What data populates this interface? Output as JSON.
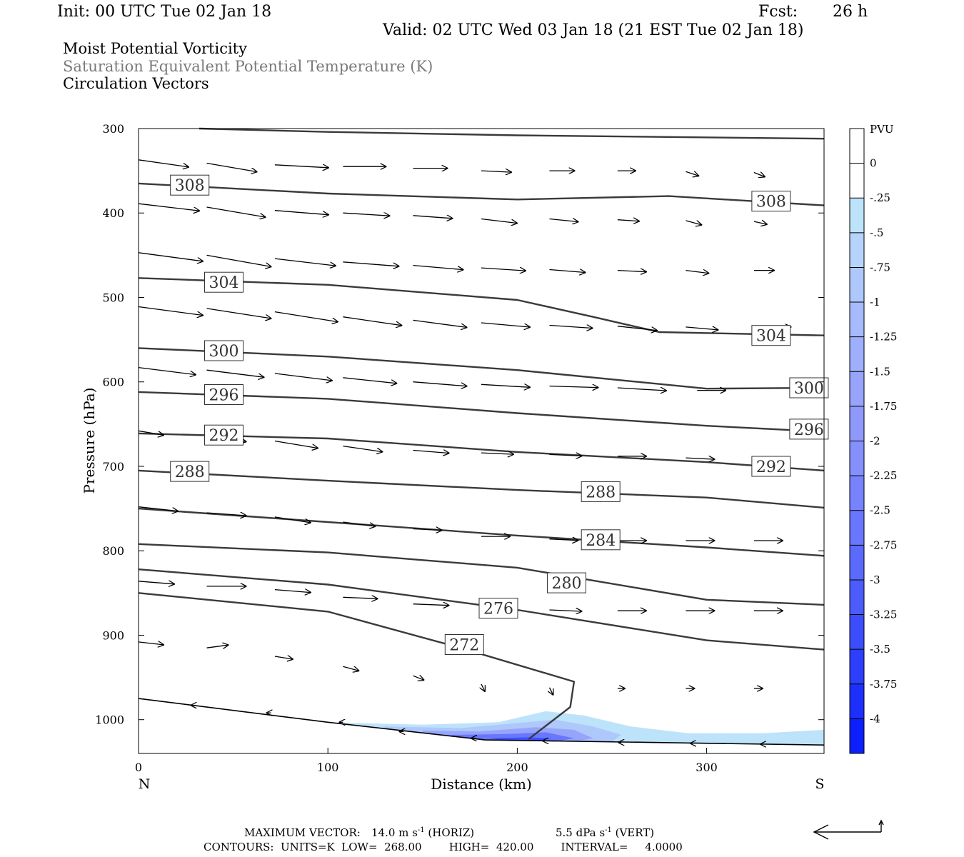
{
  "header": {
    "init": "Init: 00 UTC Tue 02 Jan 18",
    "fcst_label": "Fcst:",
    "fcst_value": "26 h",
    "valid": "Valid: 02 UTC Wed 03 Jan 18 (21 EST Tue 02 Jan 18)",
    "titles": [
      "Moist Potential Vorticity",
      "Saturation Equivalent Potential Temperature (K)",
      "Circulation Vectors"
    ]
  },
  "chart_data": {
    "type": "cross-section",
    "xlabel": "Distance (km)",
    "ylabel": "Pressure (hPa)",
    "xlim": [
      0,
      362
    ],
    "ylim": [
      1040,
      300
    ],
    "x_ticks": [
      0,
      100,
      200,
      300
    ],
    "y_ticks": [
      300,
      400,
      500,
      600,
      700,
      800,
      900,
      1000
    ],
    "endpoint_labels": {
      "left": "N",
      "right": "S"
    },
    "colorbar": {
      "title": "PVU",
      "levels": [
        "0",
        "-.25",
        "-.5",
        "-.75",
        "-1",
        "-1.25",
        "-1.5",
        "-1.75",
        "-2",
        "-2.25",
        "-2.5",
        "-2.75",
        "-3",
        "-3.25",
        "-3.5",
        "-3.75",
        "-4"
      ],
      "colors": [
        "#ffffff",
        "#ffffff",
        "#bde3fb",
        "#b6d4fb",
        "#aec8fb",
        "#a6bbfb",
        "#9eb0fb",
        "#96a4fb",
        "#8e99fb",
        "#8490fb",
        "#7683fb",
        "#6877fb",
        "#5a6afb",
        "#4b5cfb",
        "#3c4efb",
        "#2d3ffb",
        "#1d30fb",
        "#0d20fb"
      ]
    },
    "contours": [
      {
        "label": "",
        "points": [
          [
            32,
            300
          ],
          [
            100,
            304
          ],
          [
            200,
            308
          ],
          [
            362,
            312
          ]
        ],
        "labels": []
      },
      {
        "label": "308",
        "points": [
          [
            0,
            365
          ],
          [
            100,
            377
          ],
          [
            200,
            384
          ],
          [
            280,
            380
          ],
          [
            362,
            391
          ]
        ],
        "labels": [
          [
            18,
            367
          ],
          [
            325,
            386
          ]
        ]
      },
      {
        "label": "304",
        "points": [
          [
            0,
            477
          ],
          [
            100,
            485
          ],
          [
            200,
            503
          ],
          [
            240,
            523
          ],
          [
            275,
            541
          ],
          [
            362,
            545
          ]
        ],
        "labels": [
          [
            36,
            482
          ],
          [
            325,
            545
          ]
        ]
      },
      {
        "label": "300",
        "points": [
          [
            0,
            560
          ],
          [
            100,
            570
          ],
          [
            200,
            586
          ],
          [
            300,
            608
          ],
          [
            362,
            607
          ]
        ],
        "labels": [
          [
            36,
            563
          ],
          [
            345,
            607
          ]
        ]
      },
      {
        "label": "296",
        "points": [
          [
            0,
            612
          ],
          [
            100,
            620
          ],
          [
            200,
            637
          ],
          [
            300,
            652
          ],
          [
            362,
            659
          ]
        ],
        "labels": [
          [
            36,
            615
          ],
          [
            345,
            656
          ]
        ]
      },
      {
        "label": "292",
        "points": [
          [
            0,
            661
          ],
          [
            100,
            667
          ],
          [
            200,
            683
          ],
          [
            300,
            695
          ],
          [
            362,
            705
          ]
        ],
        "labels": [
          [
            36,
            663
          ],
          [
            325,
            700
          ]
        ]
      },
      {
        "label": "288",
        "points": [
          [
            0,
            705
          ],
          [
            100,
            717
          ],
          [
            200,
            728
          ],
          [
            300,
            737
          ],
          [
            362,
            749
          ]
        ],
        "labels": [
          [
            18,
            706
          ],
          [
            235,
            730
          ]
        ]
      },
      {
        "label": "284",
        "points": [
          [
            0,
            750
          ],
          [
            100,
            766
          ],
          [
            200,
            782
          ],
          [
            300,
            796
          ],
          [
            362,
            806
          ]
        ],
        "labels": [
          [
            235,
            787
          ]
        ]
      },
      {
        "label": "280",
        "points": [
          [
            0,
            792
          ],
          [
            100,
            802
          ],
          [
            200,
            820
          ],
          [
            300,
            858
          ],
          [
            362,
            864
          ]
        ],
        "labels": [
          [
            217,
            838
          ]
        ]
      },
      {
        "label": "276",
        "points": [
          [
            0,
            822
          ],
          [
            100,
            840
          ],
          [
            200,
            870
          ],
          [
            300,
            906
          ],
          [
            362,
            917
          ]
        ],
        "labels": [
          [
            181,
            868
          ]
        ]
      },
      {
        "label": "272",
        "points": [
          [
            0,
            850
          ],
          [
            100,
            872
          ],
          [
            170,
            915
          ],
          [
            230,
            955
          ],
          [
            228,
            985
          ],
          [
            206,
            1023
          ]
        ],
        "labels": [
          [
            163,
            911
          ]
        ]
      }
    ],
    "vectors": [
      {
        "x": 0,
        "p": 337,
        "u": 70,
        "w": 10
      },
      {
        "x": 36,
        "p": 341,
        "u": 70,
        "w": 12
      },
      {
        "x": 72,
        "p": 343,
        "u": 75,
        "w": 4
      },
      {
        "x": 108,
        "p": 345,
        "u": 60,
        "w": 0
      },
      {
        "x": 145,
        "p": 347,
        "u": 48,
        "w": 0
      },
      {
        "x": 181,
        "p": 350,
        "u": 42,
        "w": 2
      },
      {
        "x": 217,
        "p": 350,
        "u": 35,
        "w": 0
      },
      {
        "x": 253,
        "p": 350,
        "u": 25,
        "w": 0
      },
      {
        "x": 289,
        "p": 351,
        "u": 18,
        "w": 6
      },
      {
        "x": 325,
        "p": 352,
        "u": 15,
        "w": 6
      },
      {
        "x": 0,
        "p": 389,
        "u": 85,
        "w": 10
      },
      {
        "x": 36,
        "p": 393,
        "u": 82,
        "w": 14
      },
      {
        "x": 72,
        "p": 397,
        "u": 75,
        "w": 6
      },
      {
        "x": 108,
        "p": 400,
        "u": 65,
        "w": 4
      },
      {
        "x": 145,
        "p": 403,
        "u": 55,
        "w": 4
      },
      {
        "x": 181,
        "p": 407,
        "u": 50,
        "w": 6
      },
      {
        "x": 217,
        "p": 407,
        "u": 40,
        "w": 4
      },
      {
        "x": 253,
        "p": 408,
        "u": 30,
        "w": 2
      },
      {
        "x": 289,
        "p": 409,
        "u": 22,
        "w": 6
      },
      {
        "x": 325,
        "p": 410,
        "u": 18,
        "w": 4
      },
      {
        "x": 0,
        "p": 447,
        "u": 90,
        "w": 12
      },
      {
        "x": 36,
        "p": 450,
        "u": 90,
        "w": 16
      },
      {
        "x": 72,
        "p": 454,
        "u": 85,
        "w": 10
      },
      {
        "x": 108,
        "p": 458,
        "u": 78,
        "w": 6
      },
      {
        "x": 145,
        "p": 462,
        "u": 70,
        "w": 6
      },
      {
        "x": 181,
        "p": 465,
        "u": 62,
        "w": 4
      },
      {
        "x": 217,
        "p": 467,
        "u": 50,
        "w": 4
      },
      {
        "x": 253,
        "p": 468,
        "u": 40,
        "w": 2
      },
      {
        "x": 289,
        "p": 468,
        "u": 32,
        "w": 4
      },
      {
        "x": 325,
        "p": 468,
        "u": 28,
        "w": 0
      },
      {
        "x": 0,
        "p": 511,
        "u": 90,
        "w": 12
      },
      {
        "x": 36,
        "p": 513,
        "u": 90,
        "w": 14
      },
      {
        "x": 72,
        "p": 517,
        "u": 88,
        "w": 14
      },
      {
        "x": 108,
        "p": 523,
        "u": 82,
        "w": 12
      },
      {
        "x": 145,
        "p": 527,
        "u": 75,
        "w": 10
      },
      {
        "x": 181,
        "p": 530,
        "u": 68,
        "w": 6
      },
      {
        "x": 217,
        "p": 533,
        "u": 60,
        "w": 4
      },
      {
        "x": 253,
        "p": 534,
        "u": 55,
        "w": 6
      },
      {
        "x": 289,
        "p": 535,
        "u": 45,
        "w": 4
      },
      {
        "x": 335,
        "p": 535,
        "u": 25,
        "w": 0
      },
      {
        "x": 0,
        "p": 583,
        "u": 80,
        "w": 10
      },
      {
        "x": 36,
        "p": 586,
        "u": 80,
        "w": 10
      },
      {
        "x": 72,
        "p": 590,
        "u": 80,
        "w": 10
      },
      {
        "x": 108,
        "p": 595,
        "u": 75,
        "w": 8
      },
      {
        "x": 145,
        "p": 600,
        "u": 75,
        "w": 6
      },
      {
        "x": 181,
        "p": 603,
        "u": 68,
        "w": 4
      },
      {
        "x": 217,
        "p": 605,
        "u": 68,
        "w": 2
      },
      {
        "x": 253,
        "p": 607,
        "u": 68,
        "w": 4
      },
      {
        "x": 295,
        "p": 610,
        "u": 40,
        "w": 0
      },
      {
        "x": 0,
        "p": 658,
        "u": 35,
        "w": 6
      },
      {
        "x": 36,
        "p": 664,
        "u": 55,
        "w": 8
      },
      {
        "x": 72,
        "p": 670,
        "u": 60,
        "w": 10
      },
      {
        "x": 108,
        "p": 676,
        "u": 55,
        "w": 8
      },
      {
        "x": 145,
        "p": 681,
        "u": 50,
        "w": 4
      },
      {
        "x": 181,
        "p": 684,
        "u": 45,
        "w": 2
      },
      {
        "x": 217,
        "p": 686,
        "u": 45,
        "w": 2
      },
      {
        "x": 253,
        "p": 688,
        "u": 40,
        "w": 0
      },
      {
        "x": 289,
        "p": 690,
        "u": 40,
        "w": 2
      },
      {
        "x": 325,
        "p": 692,
        "u": 35,
        "w": 4
      },
      {
        "x": 0,
        "p": 748,
        "u": 55,
        "w": 6
      },
      {
        "x": 36,
        "p": 755,
        "u": 55,
        "w": 4
      },
      {
        "x": 72,
        "p": 760,
        "u": 50,
        "w": 8
      },
      {
        "x": 108,
        "p": 766,
        "u": 45,
        "w": 6
      },
      {
        "x": 145,
        "p": 774,
        "u": 40,
        "w": 2
      },
      {
        "x": 181,
        "p": 783,
        "u": 40,
        "w": 0
      },
      {
        "x": 217,
        "p": 786,
        "u": 40,
        "w": 2
      },
      {
        "x": 253,
        "p": 788,
        "u": 40,
        "w": 0
      },
      {
        "x": 289,
        "p": 788,
        "u": 40,
        "w": 0
      },
      {
        "x": 325,
        "p": 788,
        "u": 40,
        "w": 0
      },
      {
        "x": 0,
        "p": 836,
        "u": 50,
        "w": 4
      },
      {
        "x": 36,
        "p": 842,
        "u": 55,
        "w": 0
      },
      {
        "x": 72,
        "p": 846,
        "u": 50,
        "w": 4
      },
      {
        "x": 108,
        "p": 855,
        "u": 48,
        "w": 2
      },
      {
        "x": 145,
        "p": 863,
        "u": 50,
        "w": 2
      },
      {
        "x": 181,
        "p": 866,
        "u": 48,
        "w": 4
      },
      {
        "x": 217,
        "p": 870,
        "u": 45,
        "w": 2
      },
      {
        "x": 253,
        "p": 871,
        "u": 40,
        "w": 0
      },
      {
        "x": 289,
        "p": 871,
        "u": 40,
        "w": 0
      },
      {
        "x": 325,
        "p": 871,
        "u": 40,
        "w": 0
      },
      {
        "x": 0,
        "p": 908,
        "u": 35,
        "w": 4
      },
      {
        "x": 36,
        "p": 915,
        "u": 30,
        "w": -4
      },
      {
        "x": 72,
        "p": 925,
        "u": 25,
        "w": 4
      },
      {
        "x": 108,
        "p": 937,
        "u": 22,
        "w": 6
      },
      {
        "x": 145,
        "p": 948,
        "u": 15,
        "w": 6
      },
      {
        "x": 181,
        "p": 958,
        "u": 5,
        "w": 10
      },
      {
        "x": 217,
        "p": 962,
        "u": 5,
        "w": 10
      },
      {
        "x": 253,
        "p": 963,
        "u": 10,
        "w": 0
      },
      {
        "x": 289,
        "p": 963,
        "u": 12,
        "w": 0
      },
      {
        "x": 325,
        "p": 963,
        "u": 12,
        "w": 0
      },
      {
        "x": 30,
        "p": 983,
        "u": -6,
        "w": 0
      },
      {
        "x": 70,
        "p": 992,
        "u": -6,
        "w": 0
      },
      {
        "x": 108,
        "p": 1003,
        "u": -5,
        "w": 0
      },
      {
        "x": 140,
        "p": 1014,
        "u": -6,
        "w": 0
      },
      {
        "x": 178,
        "p": 1022,
        "u": -6,
        "w": 0
      },
      {
        "x": 215,
        "p": 1025,
        "u": -4,
        "w": 0
      },
      {
        "x": 255,
        "p": 1027,
        "u": -4,
        "w": 0
      },
      {
        "x": 293,
        "p": 1028,
        "u": -4,
        "w": 0
      },
      {
        "x": 330,
        "p": 1029,
        "u": -4,
        "w": 0
      }
    ],
    "surface": [
      [
        0,
        975
      ],
      [
        100,
        1003
      ],
      [
        183,
        1024
      ],
      [
        362,
        1030
      ]
    ],
    "pv_shading": [
      {
        "level": -0.25,
        "color": "#bde3fb",
        "points": [
          [
            100,
            1003
          ],
          [
            150,
            1006
          ],
          [
            190,
            1003
          ],
          [
            215,
            990
          ],
          [
            235,
            995
          ],
          [
            260,
            1008
          ],
          [
            290,
            1016
          ],
          [
            330,
            1016
          ],
          [
            362,
            1012
          ],
          [
            362,
            1030
          ],
          [
            183,
            1024
          ],
          [
            100,
            1003
          ]
        ]
      },
      {
        "level": -0.75,
        "color": "#aec8fb",
        "points": [
          [
            130,
            1008
          ],
          [
            170,
            1010
          ],
          [
            200,
            1004
          ],
          [
            220,
            1000
          ],
          [
            240,
            1008
          ],
          [
            255,
            1018
          ],
          [
            250,
            1026
          ],
          [
            183,
            1024
          ],
          [
            130,
            1011
          ]
        ]
      },
      {
        "level": -1.5,
        "color": "#96a4fb",
        "points": [
          [
            150,
            1013
          ],
          [
            180,
            1014
          ],
          [
            210,
            1009
          ],
          [
            230,
            1012
          ],
          [
            240,
            1022
          ],
          [
            230,
            1026
          ],
          [
            183,
            1024
          ],
          [
            150,
            1016
          ]
        ]
      },
      {
        "level": -2.5,
        "color": "#6877fb",
        "points": [
          [
            165,
            1018
          ],
          [
            195,
            1017
          ],
          [
            215,
            1015
          ],
          [
            230,
            1022
          ],
          [
            220,
            1026
          ],
          [
            183,
            1024
          ],
          [
            165,
            1020
          ]
        ]
      },
      {
        "level": -3.5,
        "color": "#3c4efb",
        "points": [
          [
            185,
            1022
          ],
          [
            205,
            1021
          ],
          [
            218,
            1022
          ],
          [
            212,
            1025
          ],
          [
            195,
            1025
          ]
        ]
      }
    ]
  },
  "footer": {
    "max_vector_label": "MAXIMUM VECTOR:",
    "horiz_value": "14.0 m s",
    "horiz_exp": "-1",
    "horiz_tag": "(HORIZ)",
    "vert_value": "5.5 dPa s",
    "vert_exp": "-1",
    "vert_tag": "(VERT)",
    "contours_line": "CONTOURS:  UNITS=K  LOW=  268.00        HIGH=  420.00        INTERVAL=     4.0000"
  }
}
